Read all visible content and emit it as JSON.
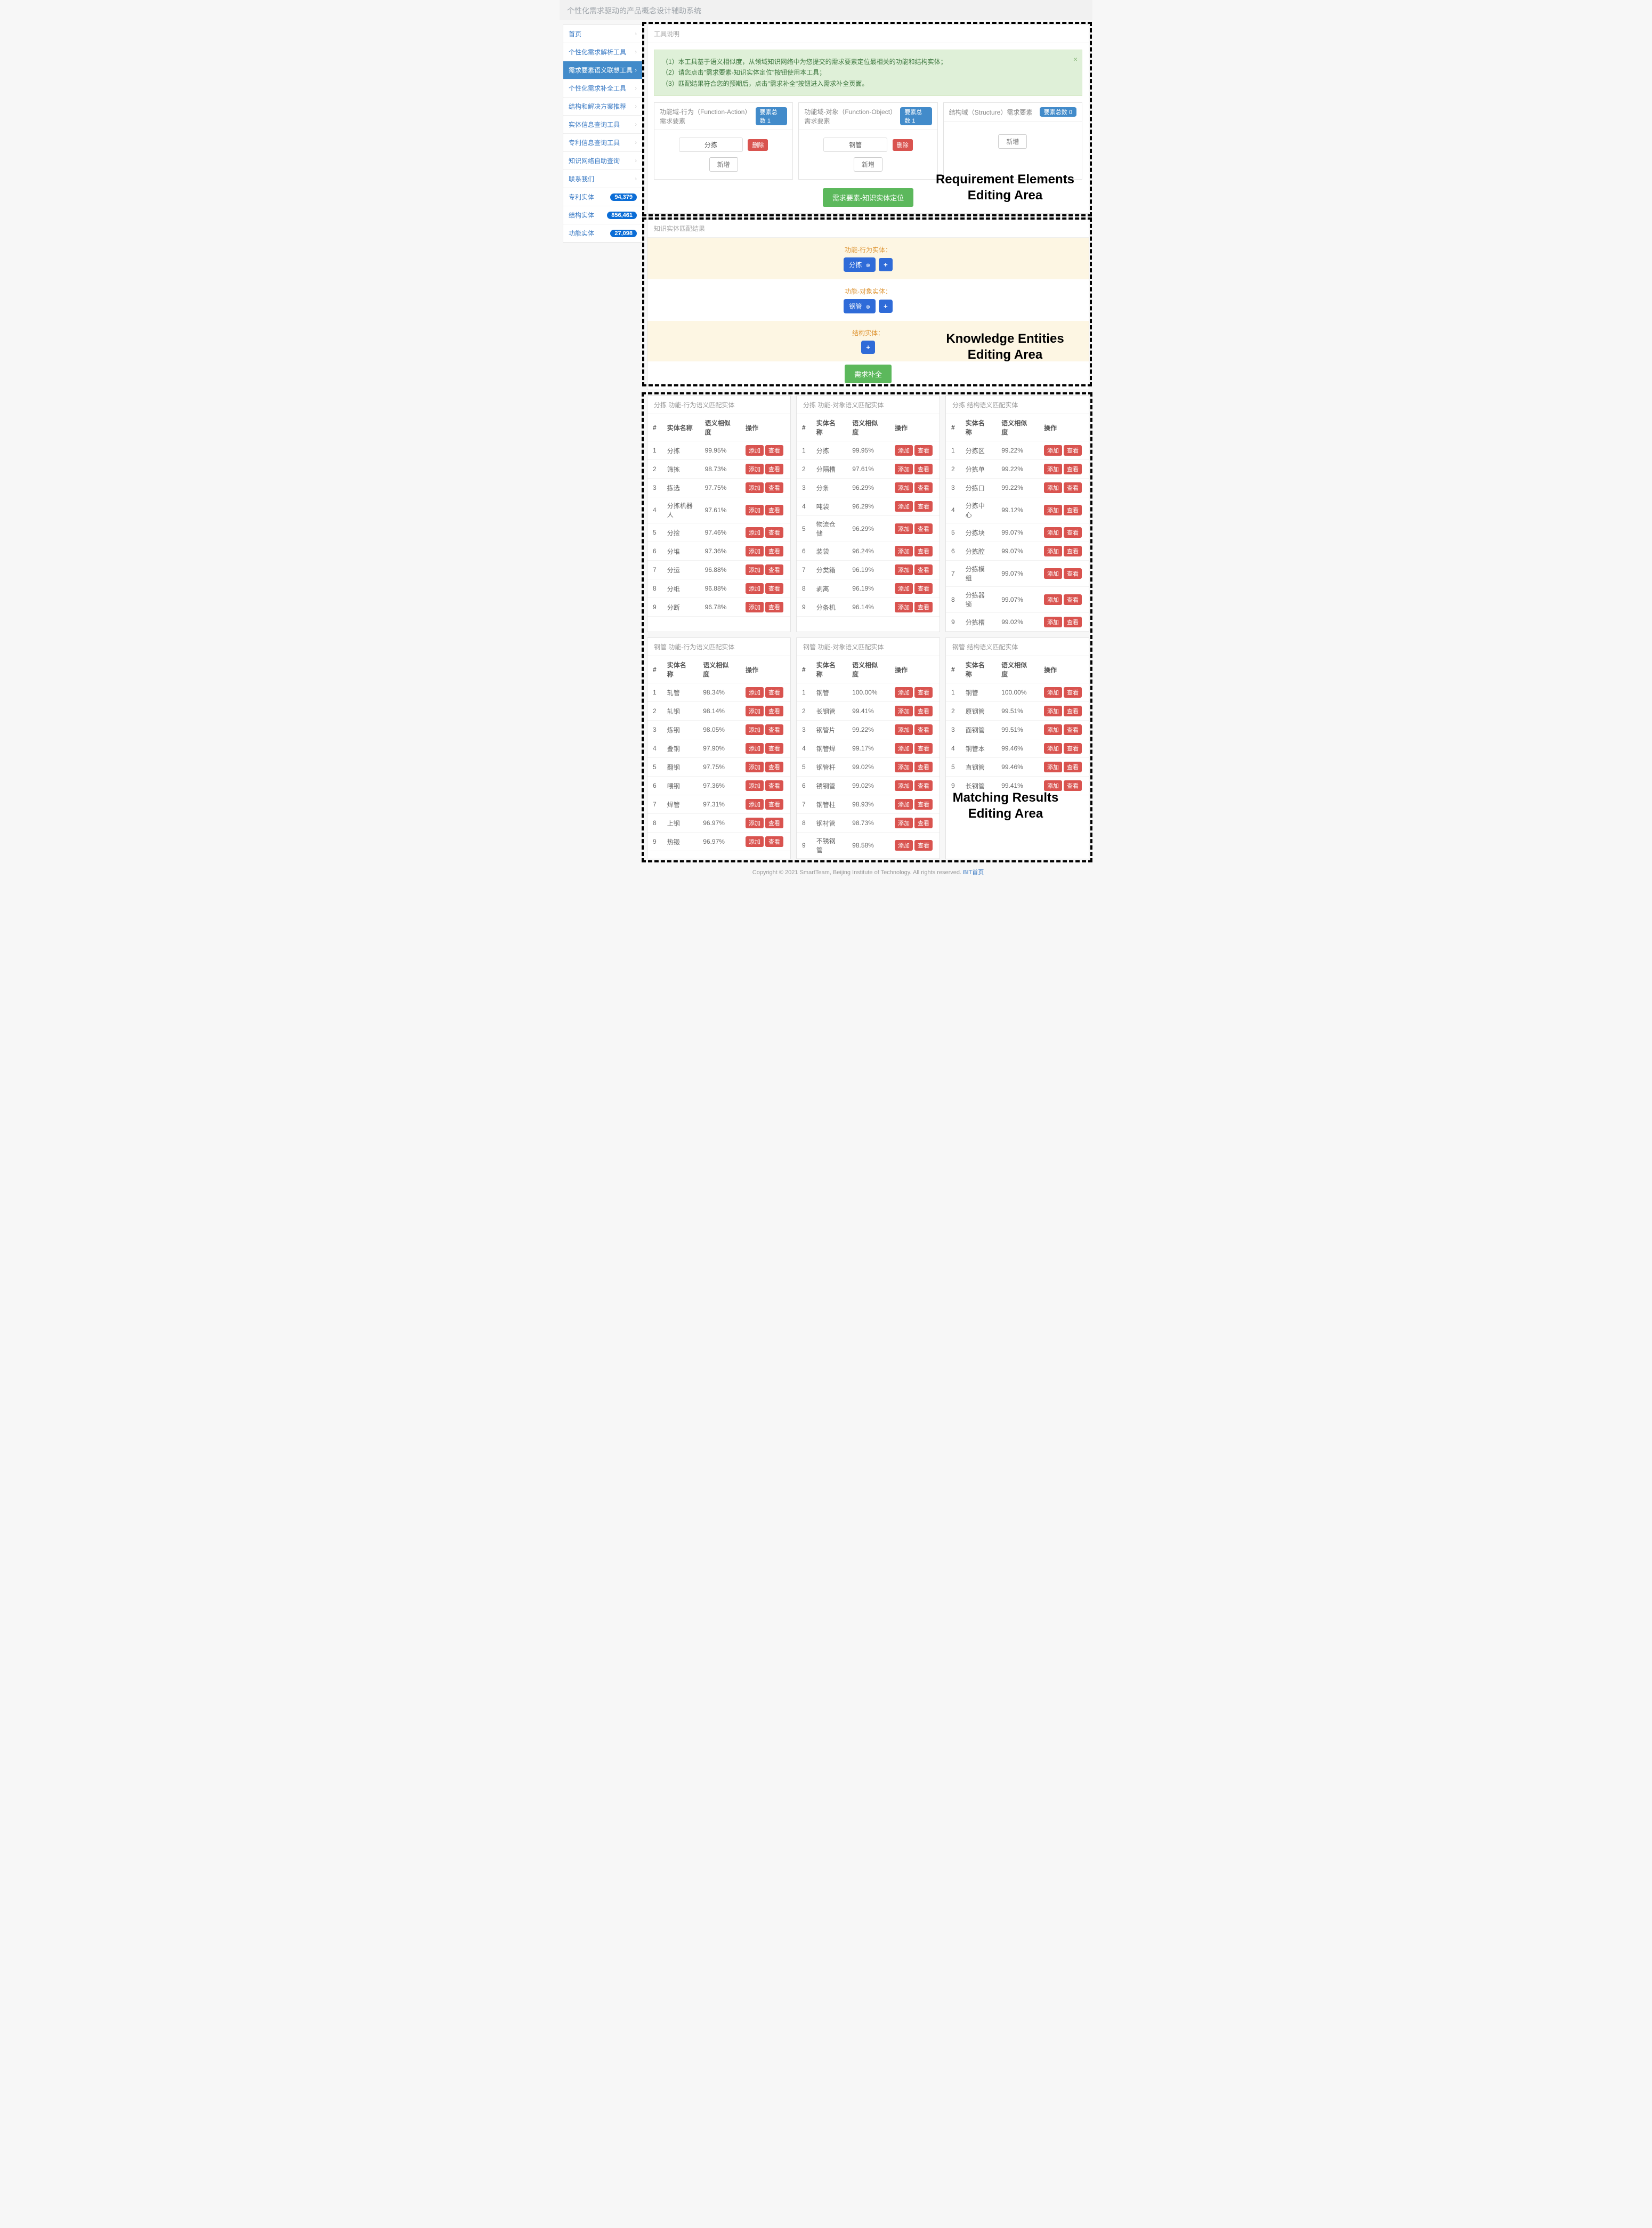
{
  "app": {
    "title": "个性化需求驱动的产品概念设计辅助系统"
  },
  "sidebar": {
    "items": [
      {
        "label": "首页",
        "kind": "chev"
      },
      {
        "label": "个性化需求解析工具",
        "kind": "chev"
      },
      {
        "label": "需求要素语义联想工具",
        "kind": "chev",
        "active": true
      },
      {
        "label": "个性化需求补全工具",
        "kind": "chev"
      },
      {
        "label": "结构和解决方案推荐",
        "kind": "chev"
      },
      {
        "label": "实体信息查询工具",
        "kind": "chev"
      },
      {
        "label": "专利信息查询工具",
        "kind": "chev"
      },
      {
        "label": "知识网络自助查询",
        "kind": "chev"
      },
      {
        "label": "联系我们",
        "kind": "chev"
      },
      {
        "label": "专利实体",
        "kind": "badge",
        "badge": "94,379"
      },
      {
        "label": "结构实体",
        "kind": "badge",
        "badge": "856,461"
      },
      {
        "label": "功能实体",
        "kind": "badge",
        "badge": "27,098"
      }
    ]
  },
  "toolPanel": {
    "title": "工具说明",
    "alert": {
      "line1": "（1）本工具基于语义相似度，从领域知识网络中为您提交的需求要素定位最相关的功能和结构实体；",
      "line2": "（2）请您点击\"需求要素-知识实体定位\"按钮使用本工具；",
      "line3": "（3）匹配结果符合您的预期后，点击\"需求补全\"按钮进入需求补全页面。"
    }
  },
  "labels": {
    "delete": "删除",
    "add": "新增",
    "countPrefix": "要素总数",
    "locate": "需求要素-知识实体定位",
    "complete": "需求补全",
    "colIdx": "#",
    "colName": "实体名称",
    "colSim": "语义相似度",
    "colOp": "操作",
    "opAdd": "添加",
    "opView": "查看",
    "overlay1_l1": "Requirement Elements",
    "overlay1_l2": "Editing Area",
    "overlay2_l1": "Knowledge Entities",
    "overlay2_l2": "Editing Area",
    "overlay3_l1": "Matching Results",
    "overlay3_l2": "Editing Area"
  },
  "req": {
    "fa": {
      "title": "功能域-行为（Function-Action）需求要素",
      "count": "1",
      "value": "分拣"
    },
    "fo": {
      "title": "功能域-对象（Function-Object）需求要素",
      "count": "1",
      "value": "钢管"
    },
    "st": {
      "title": "结构域（Structure）需求要素",
      "count": "0"
    }
  },
  "ke": {
    "panelTitle": "知识实体匹配结果",
    "rows": [
      {
        "label": "功能-行为实体：",
        "tag": "分拣"
      },
      {
        "label": "功能-对象实体：",
        "tag": "钢管"
      },
      {
        "label": "结构实体：",
        "tag": null
      }
    ]
  },
  "results": {
    "groupA": [
      {
        "title": "分拣 功能-行为语义匹配实体",
        "rows": [
          [
            "1",
            "分拣",
            "99.95%"
          ],
          [
            "2",
            "筛拣",
            "98.73%"
          ],
          [
            "3",
            "拣选",
            "97.75%"
          ],
          [
            "4",
            "分拣机器人",
            "97.61%"
          ],
          [
            "5",
            "分捡",
            "97.46%"
          ],
          [
            "6",
            "分堆",
            "97.36%"
          ],
          [
            "7",
            "分运",
            "96.88%"
          ],
          [
            "8",
            "分纸",
            "96.88%"
          ],
          [
            "9",
            "分断",
            "96.78%"
          ]
        ]
      },
      {
        "title": "分拣 功能-对象语义匹配实体",
        "rows": [
          [
            "1",
            "分拣",
            "99.95%"
          ],
          [
            "2",
            "分隔槽",
            "97.61%"
          ],
          [
            "3",
            "分条",
            "96.29%"
          ],
          [
            "4",
            "吨袋",
            "96.29%"
          ],
          [
            "5",
            "物流仓储",
            "96.29%"
          ],
          [
            "6",
            "装袋",
            "96.24%"
          ],
          [
            "7",
            "分类箱",
            "96.19%"
          ],
          [
            "8",
            "剥离",
            "96.19%"
          ],
          [
            "9",
            "分条机",
            "96.14%"
          ]
        ]
      },
      {
        "title": "分拣 结构语义匹配实体",
        "rows": [
          [
            "1",
            "分拣区",
            "99.22%"
          ],
          [
            "2",
            "分拣单",
            "99.22%"
          ],
          [
            "3",
            "分拣口",
            "99.22%"
          ],
          [
            "4",
            "分拣中心",
            "99.12%"
          ],
          [
            "5",
            "分拣块",
            "99.07%"
          ],
          [
            "6",
            "分拣腔",
            "99.07%"
          ],
          [
            "7",
            "分拣模组",
            "99.07%"
          ],
          [
            "8",
            "分拣器锁",
            "99.07%"
          ],
          [
            "9",
            "分拣槽",
            "99.02%"
          ]
        ]
      }
    ],
    "groupB": [
      {
        "title": "钢管 功能-行为语义匹配实体",
        "rows": [
          [
            "1",
            "轧管",
            "98.34%"
          ],
          [
            "2",
            "轧钢",
            "98.14%"
          ],
          [
            "3",
            "炼钢",
            "98.05%"
          ],
          [
            "4",
            "叠钢",
            "97.90%"
          ],
          [
            "5",
            "翻钢",
            "97.75%"
          ],
          [
            "6",
            "喂钢",
            "97.36%"
          ],
          [
            "7",
            "焊管",
            "97.31%"
          ],
          [
            "8",
            "上钢",
            "96.97%"
          ],
          [
            "9",
            "热锻",
            "96.97%"
          ]
        ]
      },
      {
        "title": "钢管 功能-对象语义匹配实体",
        "rows": [
          [
            "1",
            "钢管",
            "100.00%"
          ],
          [
            "2",
            "长钢管",
            "99.41%"
          ],
          [
            "3",
            "钢管片",
            "99.22%"
          ],
          [
            "4",
            "钢管焊",
            "99.17%"
          ],
          [
            "5",
            "钢管杆",
            "99.02%"
          ],
          [
            "6",
            "锈钢管",
            "99.02%"
          ],
          [
            "7",
            "钢管柱",
            "98.93%"
          ],
          [
            "8",
            "钢衬管",
            "98.73%"
          ],
          [
            "9",
            "不锈钢管",
            "98.58%"
          ]
        ]
      },
      {
        "title": "钢管 结构语义匹配实体",
        "rows": [
          [
            "1",
            "钢管",
            "100.00%"
          ],
          [
            "2",
            "原钢管",
            "99.51%"
          ],
          [
            "3",
            "面钢管",
            "99.51%"
          ],
          [
            "4",
            "钢管本",
            "99.46%"
          ],
          [
            "5",
            "直钢管",
            "99.46%"
          ],
          [
            "",
            "",
            ""
          ],
          [
            "",
            "",
            ""
          ],
          [
            "",
            "",
            ""
          ],
          [
            "9",
            "长钢管",
            "99.41%"
          ]
        ]
      }
    ]
  },
  "footer": {
    "text": "Copyright © 2021 SmartTeam, Beijing Institute of Technology. All rights reserved. ",
    "link": "BIT首页"
  }
}
